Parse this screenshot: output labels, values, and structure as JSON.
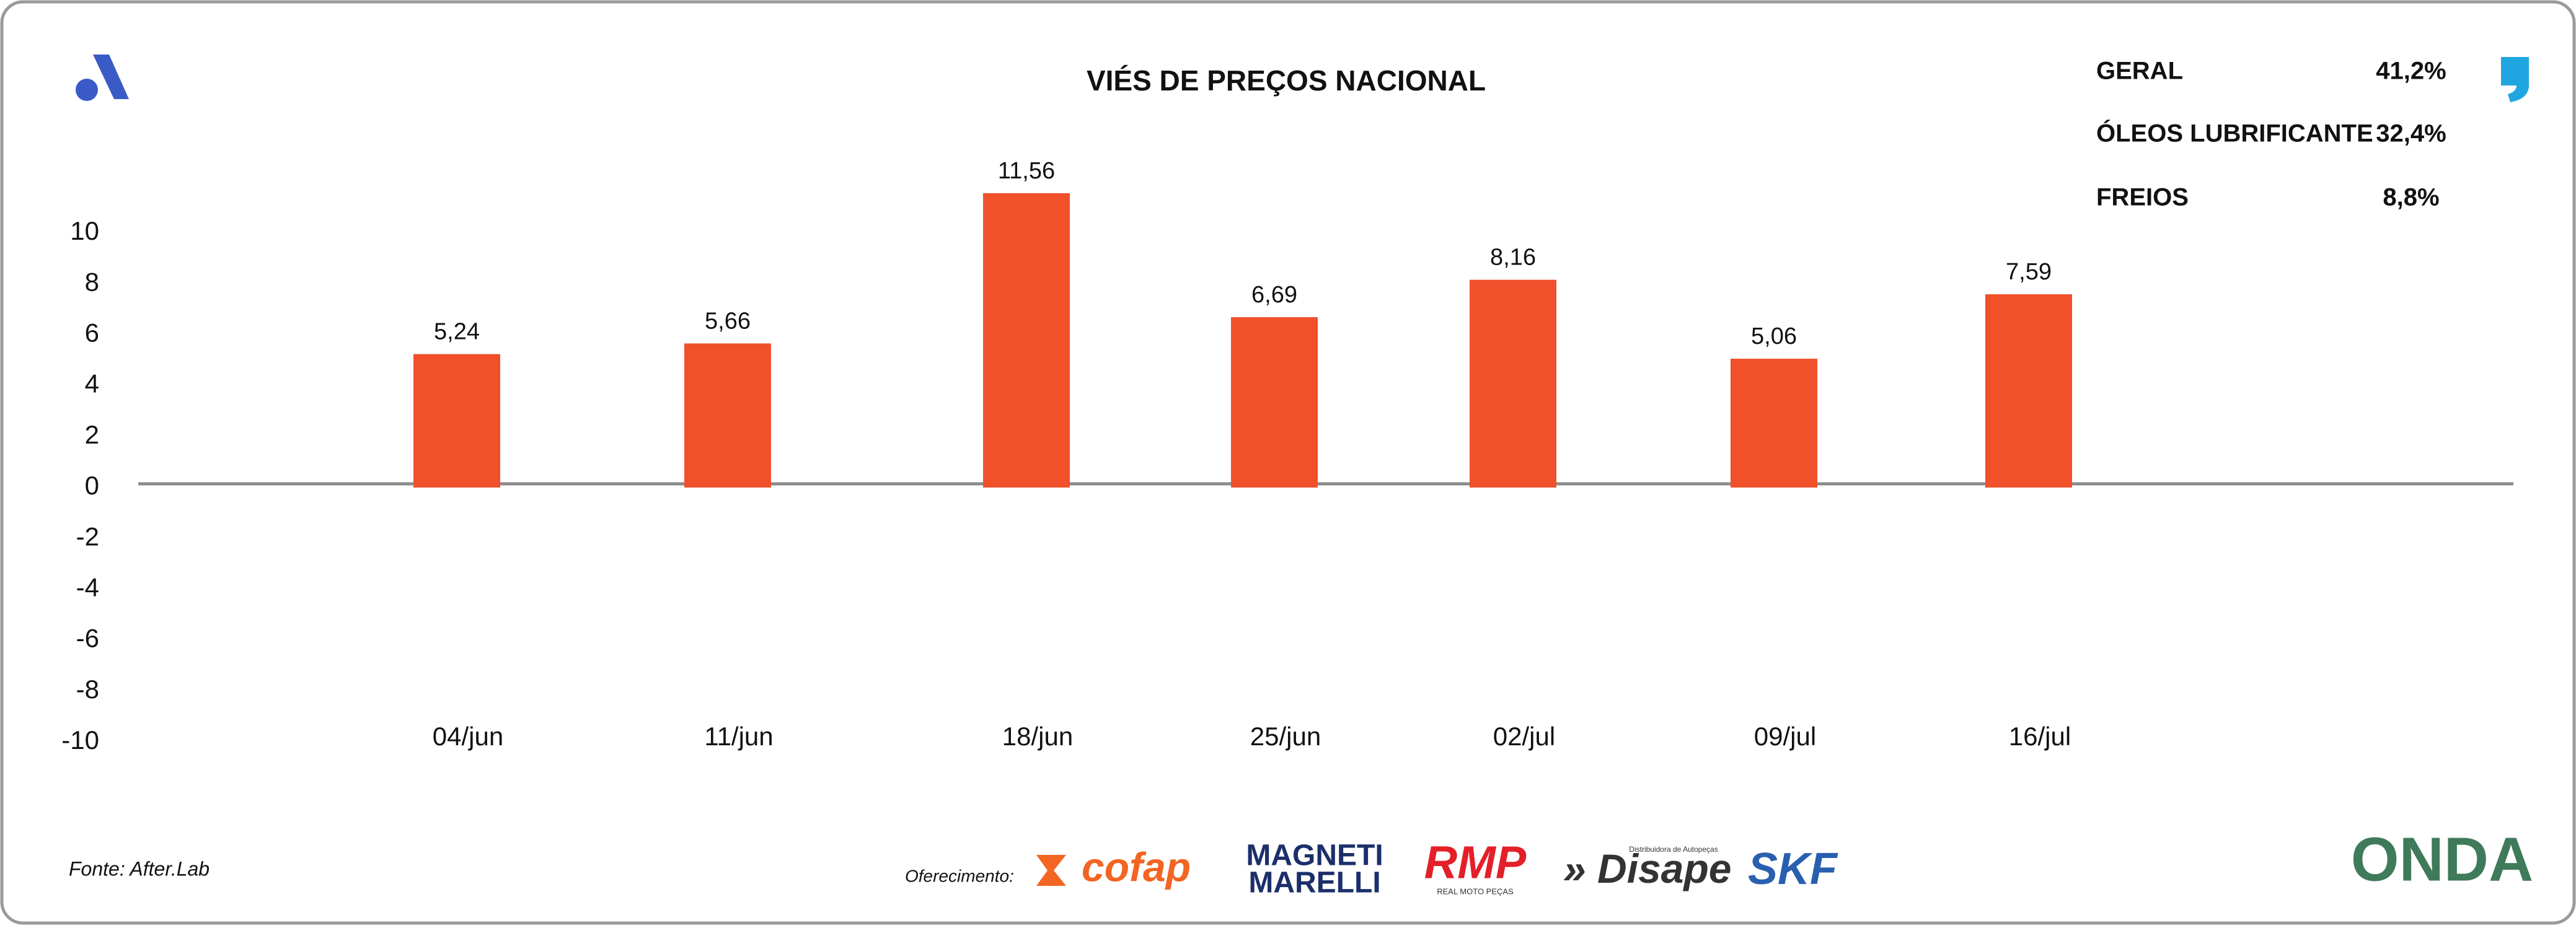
{
  "chart_data": {
    "type": "bar",
    "title": "VIÉS DE PREÇOS NACIONAL",
    "categories": [
      "04/jun",
      "11/jun",
      "18/jun",
      "25/jun",
      "02/jul",
      "09/jul",
      "16/jul"
    ],
    "values": [
      5.24,
      5.66,
      11.56,
      6.69,
      8.16,
      5.06,
      7.59
    ],
    "value_labels": [
      "5,24",
      "5,66",
      "11,56",
      "6,69",
      "8,16",
      "5,06",
      "7,59"
    ],
    "color": "#f0502a",
    "ylim": [
      -10,
      10
    ],
    "yticks": [
      -10,
      -8,
      -6,
      -4,
      -2,
      0,
      2,
      4,
      6,
      8,
      10
    ],
    "grid": false
  },
  "summary": [
    {
      "label": "GERAL",
      "value": "41,2%"
    },
    {
      "label": "ÓLEOS LUBRIFICANTE",
      "value": "32,4%"
    },
    {
      "label": "FREIOS",
      "value": "8,8%"
    }
  ],
  "footer": {
    "source": "Fonte: After.Lab",
    "sponsor_label": "Oferecimento:",
    "sponsors": [
      "cofap",
      "MAGNETI",
      "MARELLI",
      "RMP",
      "REAL MOTO PEÇAS",
      "Disape",
      "Distribuidora de Autopeças",
      "SKF",
      "ONDA"
    ]
  }
}
